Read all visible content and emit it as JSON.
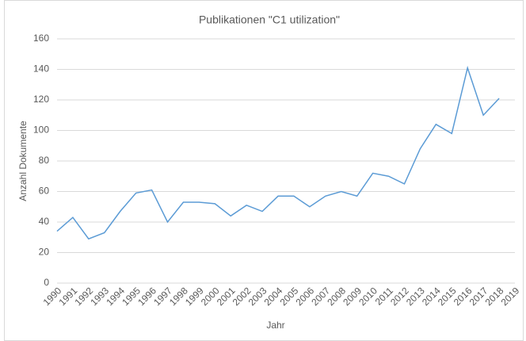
{
  "chart_data": {
    "type": "line",
    "title": "Publikationen \"C1 utilization\"",
    "x_label": "Jahr",
    "y_label": "Anzahl Dokumente",
    "categories": [
      "1990",
      "1991",
      "1992",
      "1993",
      "1994",
      "1995",
      "1996",
      "1997",
      "1998",
      "1999",
      "2000",
      "2001",
      "2002",
      "2003",
      "2004",
      "2005",
      "2006",
      "2007",
      "2008",
      "2009",
      "2010",
      "2011",
      "2012",
      "2013",
      "2014",
      "2015",
      "2016",
      "2017",
      "2018",
      "2019"
    ],
    "series": [
      {
        "name": "Publikationen",
        "color": "#5b9bd5",
        "values": [
          34,
          43,
          29,
          33,
          47,
          59,
          61,
          40,
          53,
          53,
          52,
          44,
          51,
          47,
          57,
          57,
          50,
          57,
          60,
          57,
          72,
          70,
          65,
          88,
          104,
          98,
          141,
          110,
          121,
          null
        ]
      }
    ],
    "ylim": [
      0,
      160
    ],
    "yticks": [
      0,
      20,
      40,
      60,
      80,
      100,
      120,
      140,
      160
    ],
    "grid": true
  }
}
